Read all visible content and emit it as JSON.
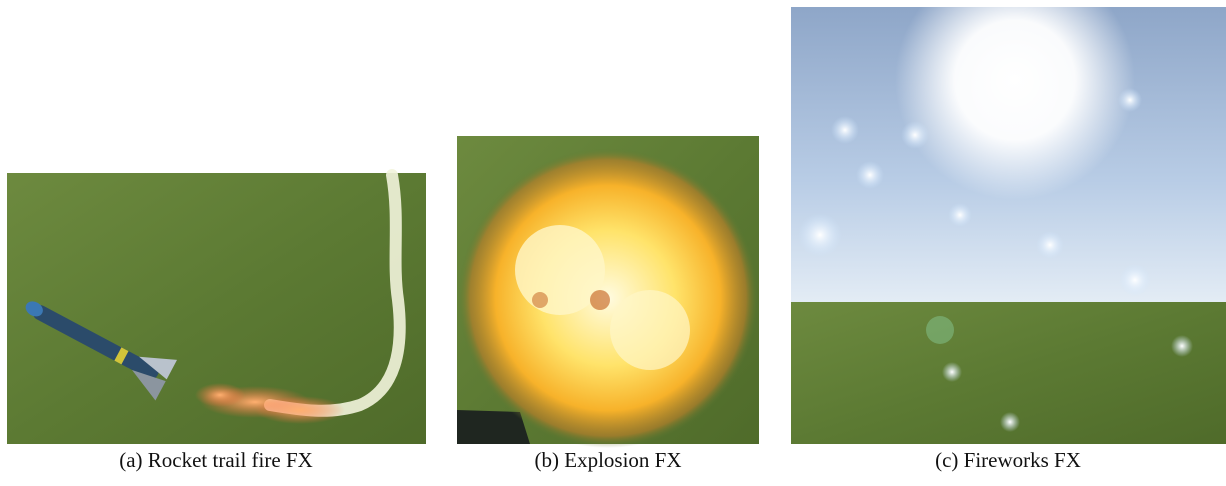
{
  "figure": {
    "panels": [
      {
        "caption": "(a) Rocket trail fire FX"
      },
      {
        "caption": "(b) Explosion FX"
      },
      {
        "caption": "(c) Fireworks FX"
      }
    ]
  }
}
